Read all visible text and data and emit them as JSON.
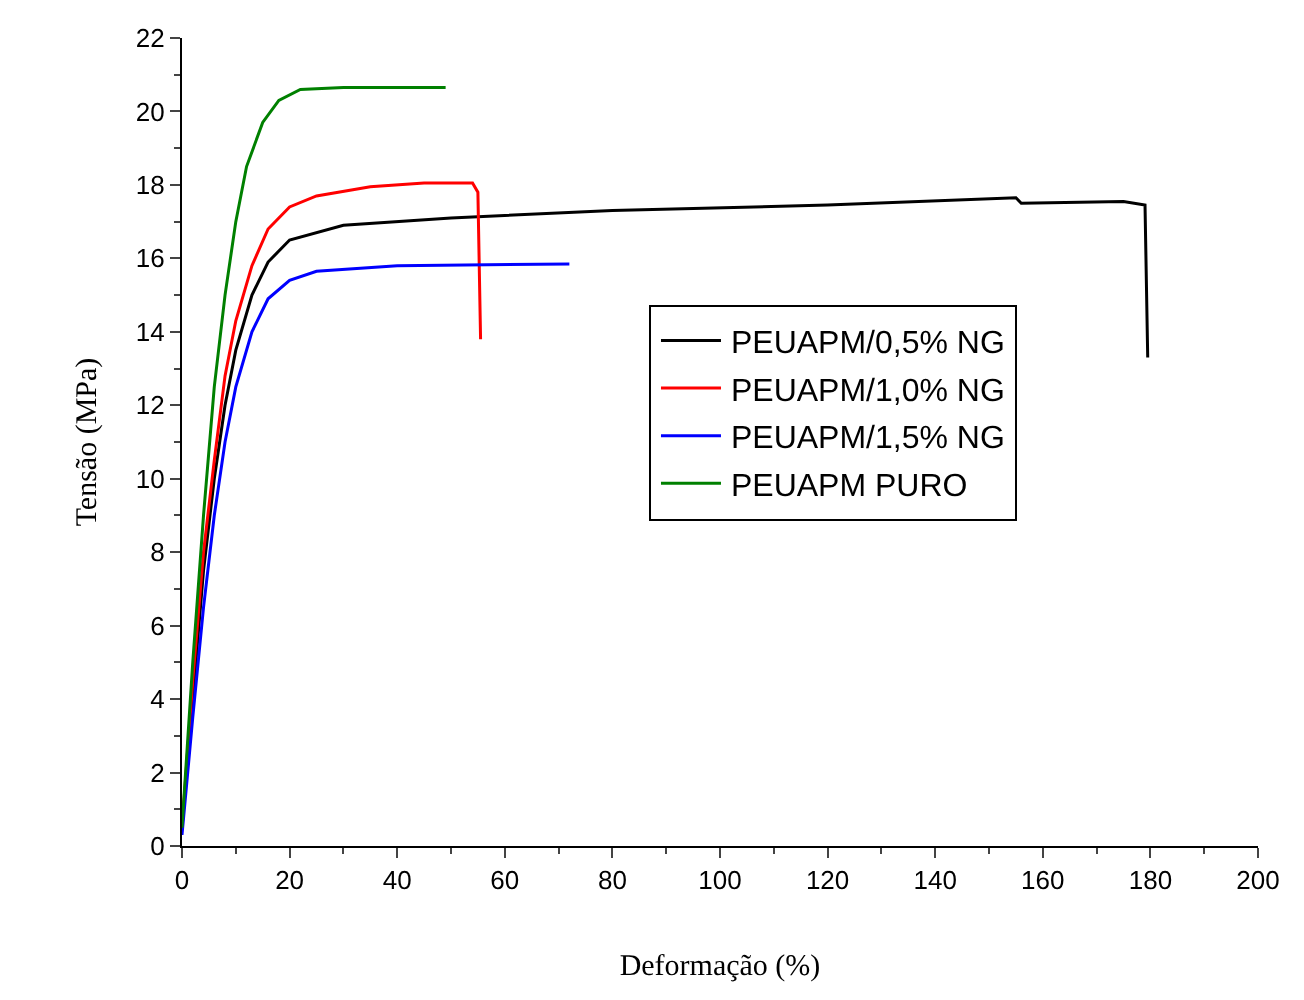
{
  "chart_data": {
    "type": "line",
    "xlabel": "Deformação (%)",
    "ylabel": "Tensão (MPa)",
    "xlim": [
      0,
      200
    ],
    "xticks": [
      0,
      20,
      40,
      60,
      80,
      100,
      120,
      140,
      160,
      180,
      200
    ],
    "ylim": [
      0,
      22
    ],
    "yticks": [
      0,
      2,
      4,
      6,
      8,
      10,
      12,
      14,
      16,
      18,
      20,
      22
    ],
    "legend": "right",
    "marker": "none",
    "line_style": "solid",
    "series": [
      {
        "name": "PEUAPM/0,5% NG",
        "color": "#000000",
        "x": [
          0,
          2,
          4,
          6,
          8,
          10,
          13,
          16,
          20,
          30,
          50,
          80,
          120,
          155,
          156,
          175,
          179,
          179.5
        ],
        "values": [
          0.5,
          4,
          7.5,
          10,
          12,
          13.5,
          15,
          15.9,
          16.5,
          16.9,
          17.1,
          17.3,
          17.45,
          17.65,
          17.5,
          17.55,
          17.45,
          13.3
        ]
      },
      {
        "name": "PEUAPM/1,0% NG",
        "color": "#ff0000",
        "x": [
          0,
          2,
          4,
          6,
          8,
          10,
          13,
          16,
          20,
          25,
          35,
          45,
          54,
          55,
          55.5
        ],
        "values": [
          0.5,
          4.5,
          8,
          10.5,
          12.8,
          14.3,
          15.8,
          16.8,
          17.4,
          17.7,
          17.95,
          18.05,
          18.05,
          17.8,
          13.8
        ]
      },
      {
        "name": "PEUAPM/1,5% NG",
        "color": "#0000ff",
        "x": [
          0,
          2,
          4,
          6,
          8,
          10,
          13,
          16,
          20,
          25,
          40,
          72
        ],
        "values": [
          0.3,
          3.5,
          6.5,
          9,
          11,
          12.5,
          14,
          14.9,
          15.4,
          15.65,
          15.8,
          15.85
        ]
      },
      {
        "name": "PEUAPM PURO",
        "color": "#008000",
        "x": [
          0,
          2,
          4,
          6,
          8,
          10,
          12,
          15,
          18,
          22,
          30,
          49
        ],
        "values": [
          0.5,
          5,
          9,
          12.5,
          15,
          17,
          18.5,
          19.7,
          20.3,
          20.6,
          20.65,
          20.65
        ]
      }
    ]
  }
}
